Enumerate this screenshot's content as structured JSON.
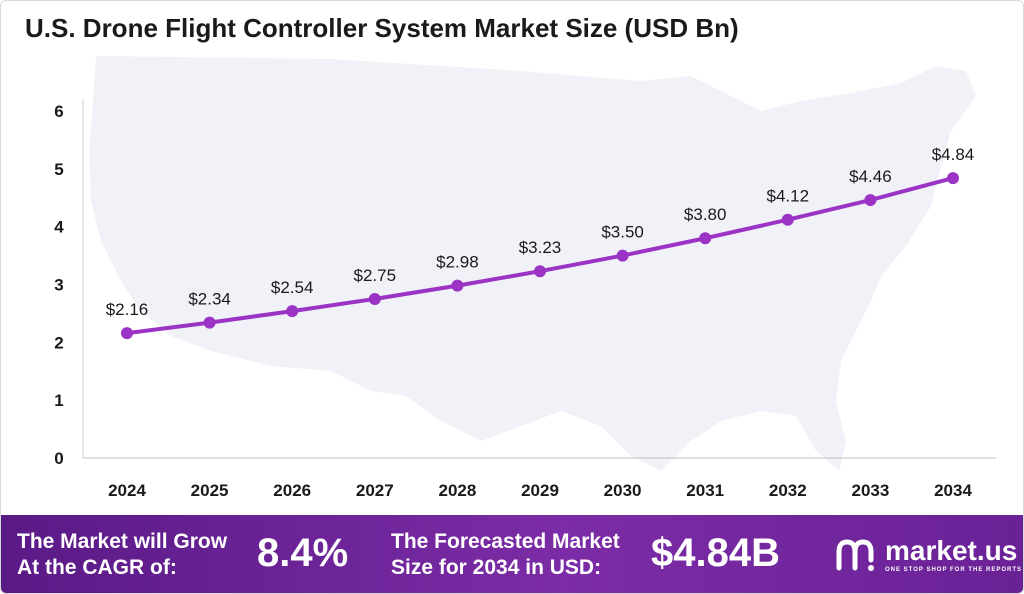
{
  "chart_data": {
    "type": "line",
    "title": "U.S. Drone Flight Controller System Market Size (USD Bn)",
    "categories": [
      "2024",
      "2025",
      "2026",
      "2027",
      "2028",
      "2029",
      "2030",
      "2031",
      "2032",
      "2033",
      "2034"
    ],
    "values": [
      2.16,
      2.34,
      2.54,
      2.75,
      2.98,
      3.23,
      3.5,
      3.8,
      4.12,
      4.46,
      4.84
    ],
    "data_labels": [
      "$2.16",
      "$2.34",
      "$2.54",
      "$2.75",
      "$2.98",
      "$3.23",
      "$3.50",
      "$3.80",
      "$4.12",
      "$4.46",
      "$4.84"
    ],
    "yticks": [
      0,
      1,
      2,
      3,
      4,
      5,
      6
    ],
    "ylim": [
      0,
      6
    ],
    "grid": false,
    "line_color": "#9b34c4"
  },
  "footer": {
    "cagr_text_1": "The Market will Grow",
    "cagr_text_2": "At the CAGR of:",
    "cagr_value": "8.4%",
    "forecast_text_1": "The Forecasted Market",
    "forecast_text_2": "Size for 2034 in USD:",
    "forecast_value": "$4.84B",
    "brand_name": "market.us",
    "brand_tagline": "ONE STOP SHOP FOR THE REPORTS",
    "background_color": "#6a2196"
  }
}
